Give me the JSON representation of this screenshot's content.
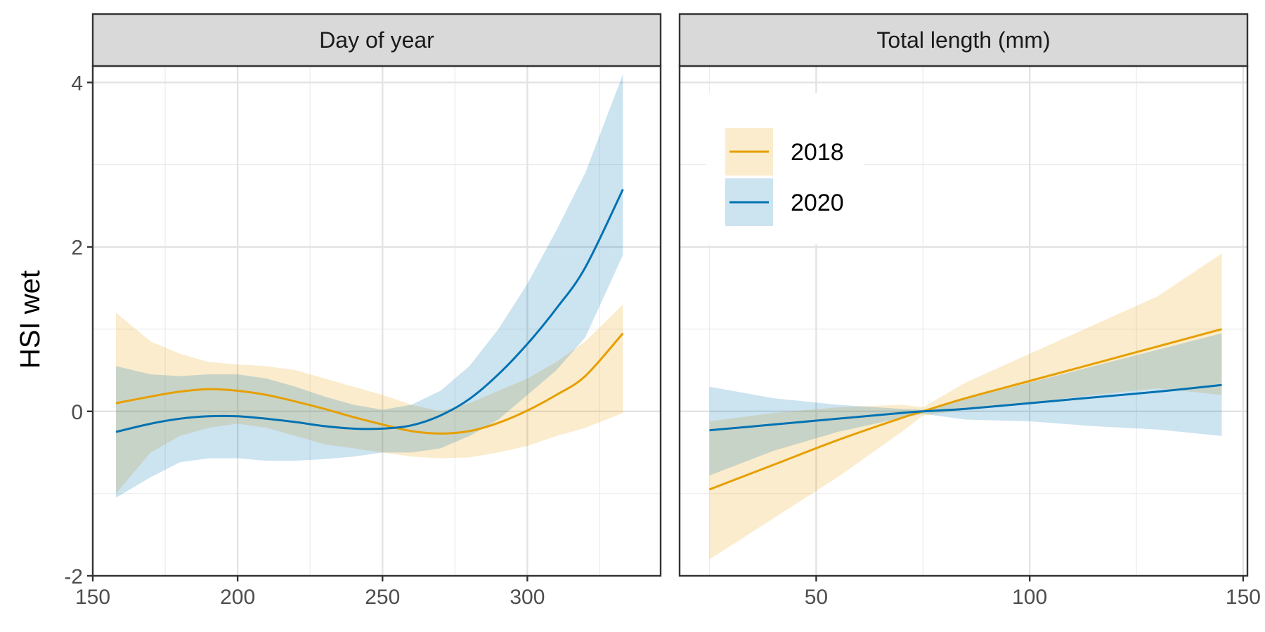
{
  "chart_data": {
    "type": "line",
    "ylabel": "HSI wet",
    "ylim": [
      -2,
      4.2
    ],
    "yticks": [
      -2,
      0,
      2,
      4
    ],
    "grid": true,
    "legend": {
      "placement": "top-left of right panel"
    },
    "colors": {
      "2018": "#E69F00",
      "2020": "#0072B2"
    },
    "series_names": [
      "2018",
      "2020"
    ],
    "panels": [
      {
        "strip": "Day of year",
        "xlim": [
          150,
          346
        ],
        "xticks": [
          150,
          200,
          250,
          300
        ],
        "x": [
          158,
          170,
          180,
          190,
          200,
          210,
          220,
          230,
          240,
          250,
          260,
          270,
          280,
          290,
          300,
          310,
          320,
          333
        ],
        "series": [
          {
            "name": "2018",
            "fit": [
              0.1,
              0.18,
              0.24,
              0.27,
              0.25,
              0.2,
              0.12,
              0.03,
              -0.07,
              -0.16,
              -0.24,
              -0.27,
              -0.24,
              -0.14,
              0.01,
              0.2,
              0.43,
              0.95
            ],
            "lower": [
              -1.0,
              -0.5,
              -0.3,
              -0.2,
              -0.15,
              -0.2,
              -0.3,
              -0.4,
              -0.45,
              -0.5,
              -0.55,
              -0.57,
              -0.56,
              -0.5,
              -0.42,
              -0.3,
              -0.2,
              -0.02
            ],
            "upper": [
              1.2,
              0.85,
              0.7,
              0.6,
              0.57,
              0.55,
              0.5,
              0.4,
              0.3,
              0.2,
              0.08,
              0.0,
              0.1,
              0.25,
              0.4,
              0.6,
              0.85,
              1.3
            ]
          },
          {
            "name": "2020",
            "fit": [
              -0.25,
              -0.15,
              -0.09,
              -0.06,
              -0.06,
              -0.09,
              -0.13,
              -0.18,
              -0.21,
              -0.21,
              -0.17,
              -0.05,
              0.15,
              0.45,
              0.82,
              1.25,
              1.75,
              2.7
            ],
            "lower": [
              -1.05,
              -0.8,
              -0.62,
              -0.57,
              -0.57,
              -0.6,
              -0.6,
              -0.58,
              -0.55,
              -0.5,
              -0.5,
              -0.45,
              -0.3,
              -0.1,
              0.2,
              0.5,
              0.9,
              1.9
            ],
            "upper": [
              0.55,
              0.45,
              0.43,
              0.45,
              0.45,
              0.4,
              0.3,
              0.18,
              0.08,
              0.02,
              0.08,
              0.25,
              0.55,
              1.0,
              1.55,
              2.2,
              2.9,
              4.1
            ]
          }
        ]
      },
      {
        "strip": "Total length (mm)",
        "xlim": [
          18,
          151
        ],
        "xticks": [
          50,
          100,
          150
        ],
        "x": [
          25,
          40,
          55,
          70,
          75,
          85,
          100,
          115,
          130,
          145
        ],
        "series": [
          {
            "name": "2018",
            "fit": [
              -0.95,
              -0.65,
              -0.35,
              -0.08,
              0.0,
              0.16,
              0.37,
              0.58,
              0.79,
              1.0
            ],
            "lower": [
              -1.8,
              -1.3,
              -0.8,
              -0.25,
              -0.05,
              0.02,
              0.1,
              0.2,
              0.28,
              0.2
            ],
            "upper": [
              -0.12,
              -0.02,
              0.05,
              0.08,
              0.05,
              0.35,
              0.7,
              1.05,
              1.4,
              1.92
            ]
          },
          {
            "name": "2020",
            "fit": [
              -0.23,
              -0.16,
              -0.09,
              -0.02,
              0.0,
              0.03,
              0.1,
              0.17,
              0.24,
              0.32
            ],
            "lower": [
              -0.78,
              -0.48,
              -0.25,
              -0.08,
              -0.03,
              -0.1,
              -0.12,
              -0.18,
              -0.22,
              -0.3
            ],
            "upper": [
              0.3,
              0.16,
              0.08,
              0.03,
              0.02,
              0.15,
              0.35,
              0.55,
              0.75,
              0.95
            ]
          }
        ]
      }
    ]
  }
}
